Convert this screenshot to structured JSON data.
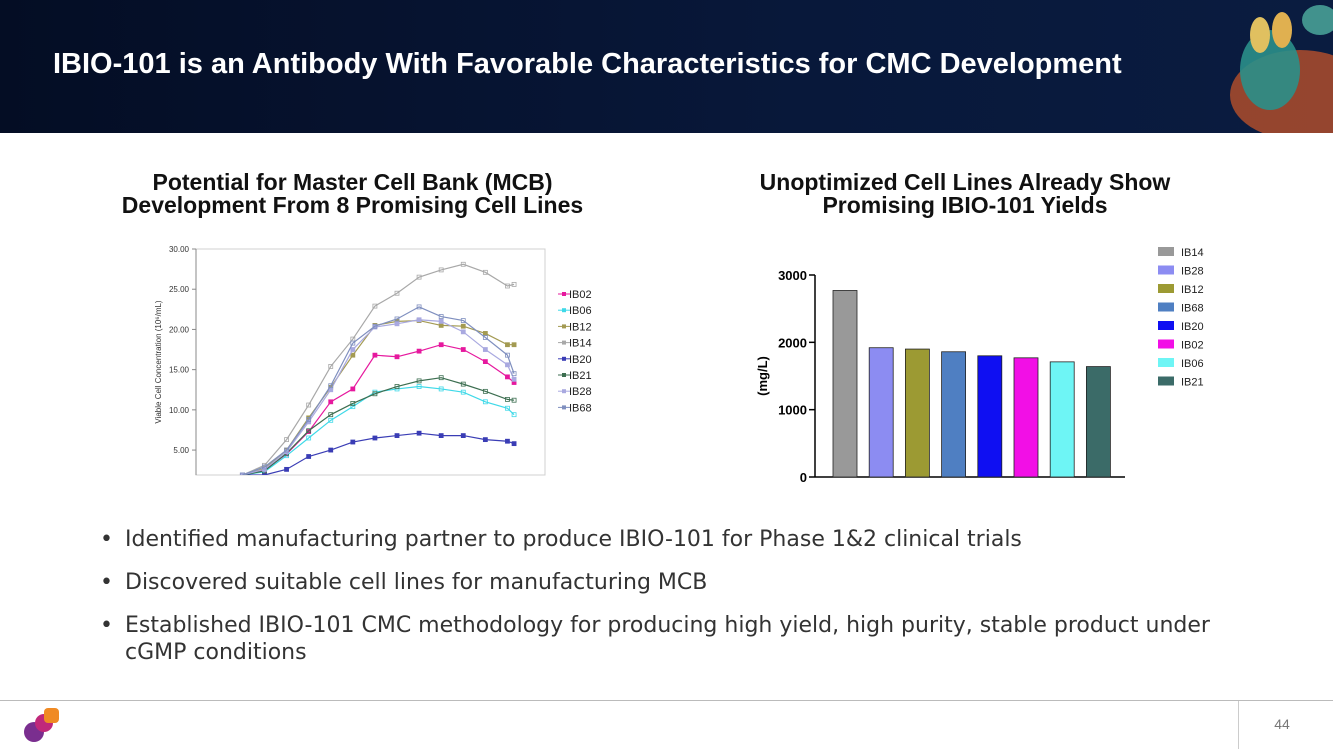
{
  "header": {
    "title": "IBIO-101 is an Antibody With Favorable Characteristics for CMC Development"
  },
  "chart_data": [
    {
      "type": "line",
      "title": "Potential for Master Cell Bank (MCB) Development From 8 Promising Cell Lines",
      "ylabel": "Viable Cell Concentration (10⁶/mL)",
      "x": [
        0,
        1,
        2,
        3,
        4,
        5,
        6,
        7,
        8,
        9,
        10,
        11,
        12,
        12.3
      ],
      "xlim": [
        -2.1,
        13.7
      ],
      "ylim": [
        1.9,
        30
      ],
      "yticks": [
        {
          "value": 5,
          "label": "5.00"
        },
        {
          "value": 10,
          "label": "10.00"
        },
        {
          "value": 15,
          "label": "15.00"
        },
        {
          "value": 20,
          "label": "20.00"
        },
        {
          "value": 25,
          "label": "25.00"
        },
        {
          "value": 30,
          "label": "30.00"
        }
      ],
      "grid": false,
      "legend": "right",
      "series": [
        {
          "name": "IB02",
          "color": "#e6199e",
          "values": [
            1.9,
            2.5,
            4.5,
            7.3,
            11.0,
            12.6,
            16.8,
            16.6,
            17.3,
            18.1,
            17.5,
            16.0,
            14.1,
            13.4
          ]
        },
        {
          "name": "IB06",
          "color": "#3fd9e8",
          "values": [
            1.9,
            2.3,
            4.3,
            6.5,
            8.7,
            10.4,
            12.2,
            12.6,
            12.9,
            12.6,
            12.2,
            11.0,
            10.2,
            9.4
          ]
        },
        {
          "name": "IB12",
          "color": "#a39a52",
          "values": [
            1.9,
            2.7,
            5.0,
            9.0,
            12.8,
            16.8,
            20.5,
            21.0,
            21.1,
            20.5,
            20.4,
            19.5,
            18.1,
            18.1
          ]
        },
        {
          "name": "IB14",
          "color": "#a8a8a8",
          "values": [
            1.9,
            3.1,
            6.3,
            10.6,
            15.4,
            18.8,
            22.9,
            24.5,
            26.5,
            27.4,
            28.1,
            27.1,
            25.4,
            25.6
          ]
        },
        {
          "name": "IB20",
          "color": "#3a3db5",
          "values": [
            1.9,
            1.9,
            2.6,
            4.2,
            5.0,
            6.0,
            6.5,
            6.8,
            7.1,
            6.8,
            6.8,
            6.3,
            6.1,
            5.8
          ]
        },
        {
          "name": "IB21",
          "color": "#3c6e50",
          "values": [
            1.9,
            2.4,
            4.6,
            7.4,
            9.4,
            10.8,
            12.0,
            12.9,
            13.6,
            14.0,
            13.2,
            12.3,
            11.3,
            11.2
          ]
        },
        {
          "name": "IB28",
          "color": "#a9a9e0",
          "values": [
            1.9,
            2.6,
            4.8,
            8.5,
            12.5,
            17.5,
            20.3,
            20.7,
            21.2,
            21.0,
            19.7,
            17.5,
            15.6,
            13.8
          ]
        },
        {
          "name": "IB68",
          "color": "#7f8fbf",
          "values": [
            1.9,
            2.9,
            5.0,
            8.8,
            13.0,
            18.3,
            20.4,
            21.3,
            22.8,
            21.6,
            21.1,
            19.0,
            16.8,
            14.5
          ]
        }
      ]
    },
    {
      "type": "bar",
      "title": "Unoptimized Cell Lines Already Show Promising IBIO-101 Yields",
      "ylabel": "(mg/L)",
      "categories": [
        "IB14",
        "IB28",
        "IB12",
        "IB68",
        "IB20",
        "IB02",
        "IB06",
        "IB21"
      ],
      "values": [
        2770,
        1920,
        1900,
        1860,
        1800,
        1770,
        1710,
        1640
      ],
      "colors": [
        "#999999",
        "#8c8cf2",
        "#9c9a33",
        "#4f7fc2",
        "#0f0ff2",
        "#f20fe6",
        "#6ef5f5",
        "#3b6b68"
      ],
      "ylim": [
        0,
        3000
      ],
      "yticks": [
        0,
        1000,
        2000,
        3000
      ],
      "legend": "right"
    }
  ],
  "bullets": [
    "Identified manufacturing partner to produce IBIO-101 for Phase 1&2 clinical trials",
    "Discovered suitable cell lines for manufacturing MCB",
    "Established IBIO-101 CMC methodology for producing high yield, high purity, stable product under cGMP conditions"
  ],
  "page_number": "44"
}
